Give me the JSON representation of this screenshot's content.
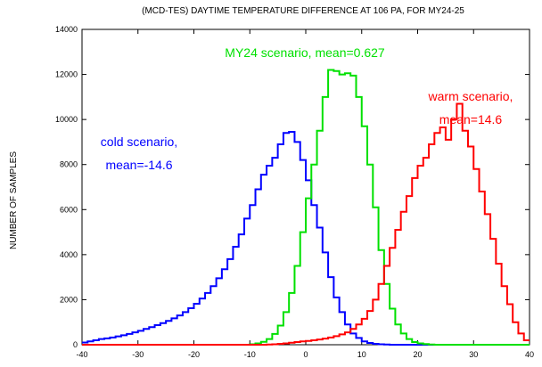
{
  "chart_data": {
    "type": "line",
    "title": "(MCD-TES) DAYTIME TEMPERATURE DIFFERENCE AT 106 PA, FOR MY24-25",
    "xlabel": "",
    "ylabel": "NUMBER OF SAMPLES",
    "xlim": [
      -40,
      40
    ],
    "ylim": [
      0,
      14000
    ],
    "x_ticks": [
      -40,
      -30,
      -20,
      -10,
      0,
      10,
      20,
      30,
      40
    ],
    "y_ticks": [
      0,
      2000,
      4000,
      6000,
      8000,
      10000,
      12000,
      14000
    ],
    "grid": false,
    "step": true,
    "bin_start": -40,
    "bin_width": 1,
    "series": [
      {
        "color": "#0000ff",
        "values": [
          100,
          150,
          200,
          250,
          280,
          320,
          370,
          420,
          480,
          550,
          620,
          700,
          780,
          870,
          960,
          1060,
          1170,
          1300,
          1450,
          1620,
          1820,
          2050,
          2300,
          2600,
          2950,
          3350,
          3800,
          4350,
          4900,
          5600,
          6200,
          6900,
          7550,
          7950,
          8300,
          8900,
          9400,
          9450,
          9000,
          8200,
          7300,
          6200,
          5200,
          4100,
          3000,
          2100,
          1450,
          900,
          500,
          300,
          150,
          80,
          40,
          20,
          10,
          0,
          0,
          0,
          0,
          0,
          0,
          0,
          0,
          0,
          0,
          0,
          0,
          0,
          0,
          0,
          0,
          0,
          0,
          0,
          0,
          0,
          0,
          0,
          0,
          0
        ]
      },
      {
        "color": "#00e000",
        "values": [
          0,
          0,
          0,
          0,
          0,
          0,
          0,
          0,
          0,
          0,
          0,
          0,
          0,
          0,
          0,
          0,
          0,
          0,
          0,
          0,
          0,
          0,
          0,
          0,
          0,
          0,
          0,
          0,
          0,
          0,
          20,
          60,
          130,
          250,
          480,
          850,
          1450,
          2300,
          3500,
          5000,
          6500,
          8000,
          9500,
          11000,
          12200,
          12150,
          12000,
          12050,
          11950,
          11000,
          9700,
          8000,
          6100,
          4200,
          2700,
          1600,
          900,
          500,
          250,
          120,
          60,
          30,
          10,
          0,
          0,
          0,
          0,
          0,
          0,
          0,
          0,
          0,
          0,
          0,
          0,
          0,
          0,
          0,
          0,
          0
        ]
      },
      {
        "color": "#ff0000",
        "values": [
          0,
          0,
          0,
          0,
          0,
          0,
          0,
          0,
          0,
          0,
          0,
          0,
          0,
          0,
          0,
          0,
          0,
          0,
          0,
          0,
          0,
          0,
          0,
          0,
          0,
          0,
          0,
          0,
          0,
          0,
          0,
          0,
          0,
          10,
          20,
          40,
          60,
          90,
          120,
          150,
          170,
          200,
          230,
          270,
          320,
          380,
          460,
          550,
          700,
          900,
          1150,
          1500,
          2000,
          2700,
          3500,
          4300,
          5100,
          5900,
          6600,
          7400,
          7950,
          8300,
          8900,
          9400,
          9650,
          9100,
          10000,
          10700,
          9500,
          8800,
          7800,
          6800,
          5800,
          4700,
          3600,
          2600,
          1800,
          1000,
          500,
          200
        ]
      }
    ],
    "annotations": [
      {
        "text": "cold scenario,",
        "color": "#0000ff"
      },
      {
        "text": "mean=-14.6",
        "color": "#0000ff"
      },
      {
        "text": "MY24 scenario, mean=0.627",
        "color": "#00e000"
      },
      {
        "text": "warm scenario,",
        "color": "#ff0000"
      },
      {
        "text": "mean=14.6",
        "color": "#ff0000"
      }
    ]
  }
}
